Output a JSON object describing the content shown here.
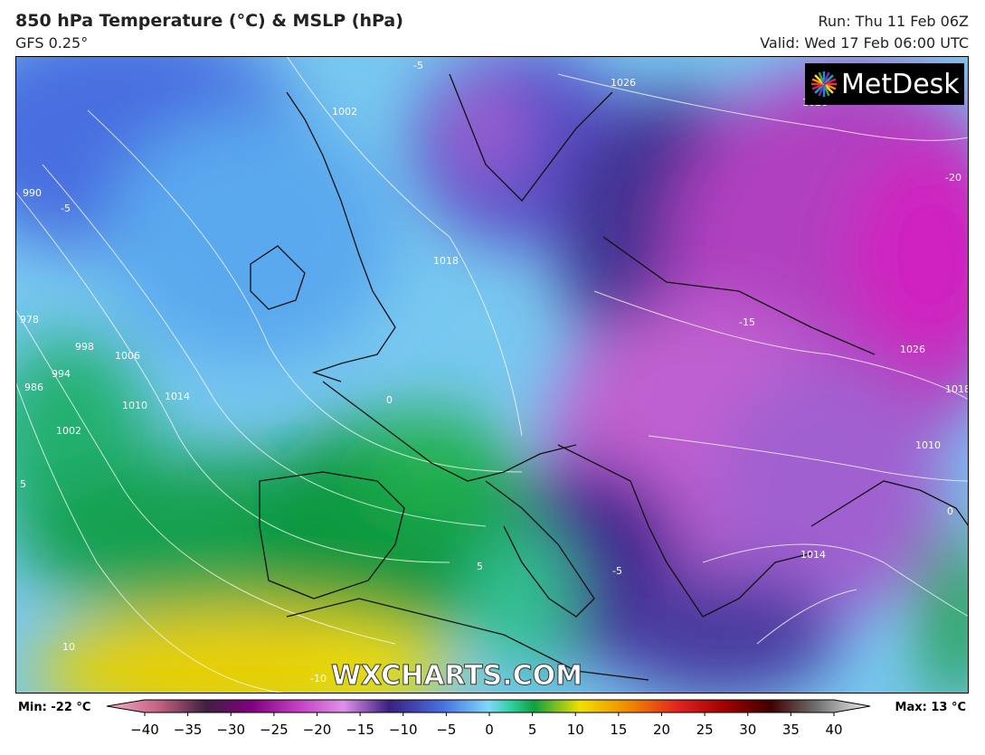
{
  "header": {
    "title": "850 hPa Temperature (°C) & MSLP (hPa)",
    "model": "GFS 0.25°",
    "run": "Run: Thu 11 Feb 06Z",
    "valid": "Valid: Wed 17 Feb 06:00 UTC"
  },
  "logo": "MetDesk",
  "watermark": "WXCHARTS.COM",
  "map_labels": [
    "1002",
    "990",
    "-5",
    "-5",
    "1026",
    "1026",
    "-20",
    "1018",
    "978",
    "986",
    "994",
    "998",
    "1006",
    "1010",
    "1014",
    "1002",
    "-15",
    "1026",
    "1018",
    "1010",
    "1014",
    "5",
    "-5",
    "10",
    "-10",
    "0",
    "5",
    "0"
  ],
  "colorbar": {
    "min": "Min: -22 °C",
    "max": "Max: 13 °C",
    "ticks": [
      "−40",
      "−35",
      "−30",
      "−25",
      "−20",
      "−15",
      "−10",
      "−5",
      "0",
      "5",
      "10",
      "15",
      "20",
      "25",
      "30",
      "35",
      "40"
    ]
  }
}
